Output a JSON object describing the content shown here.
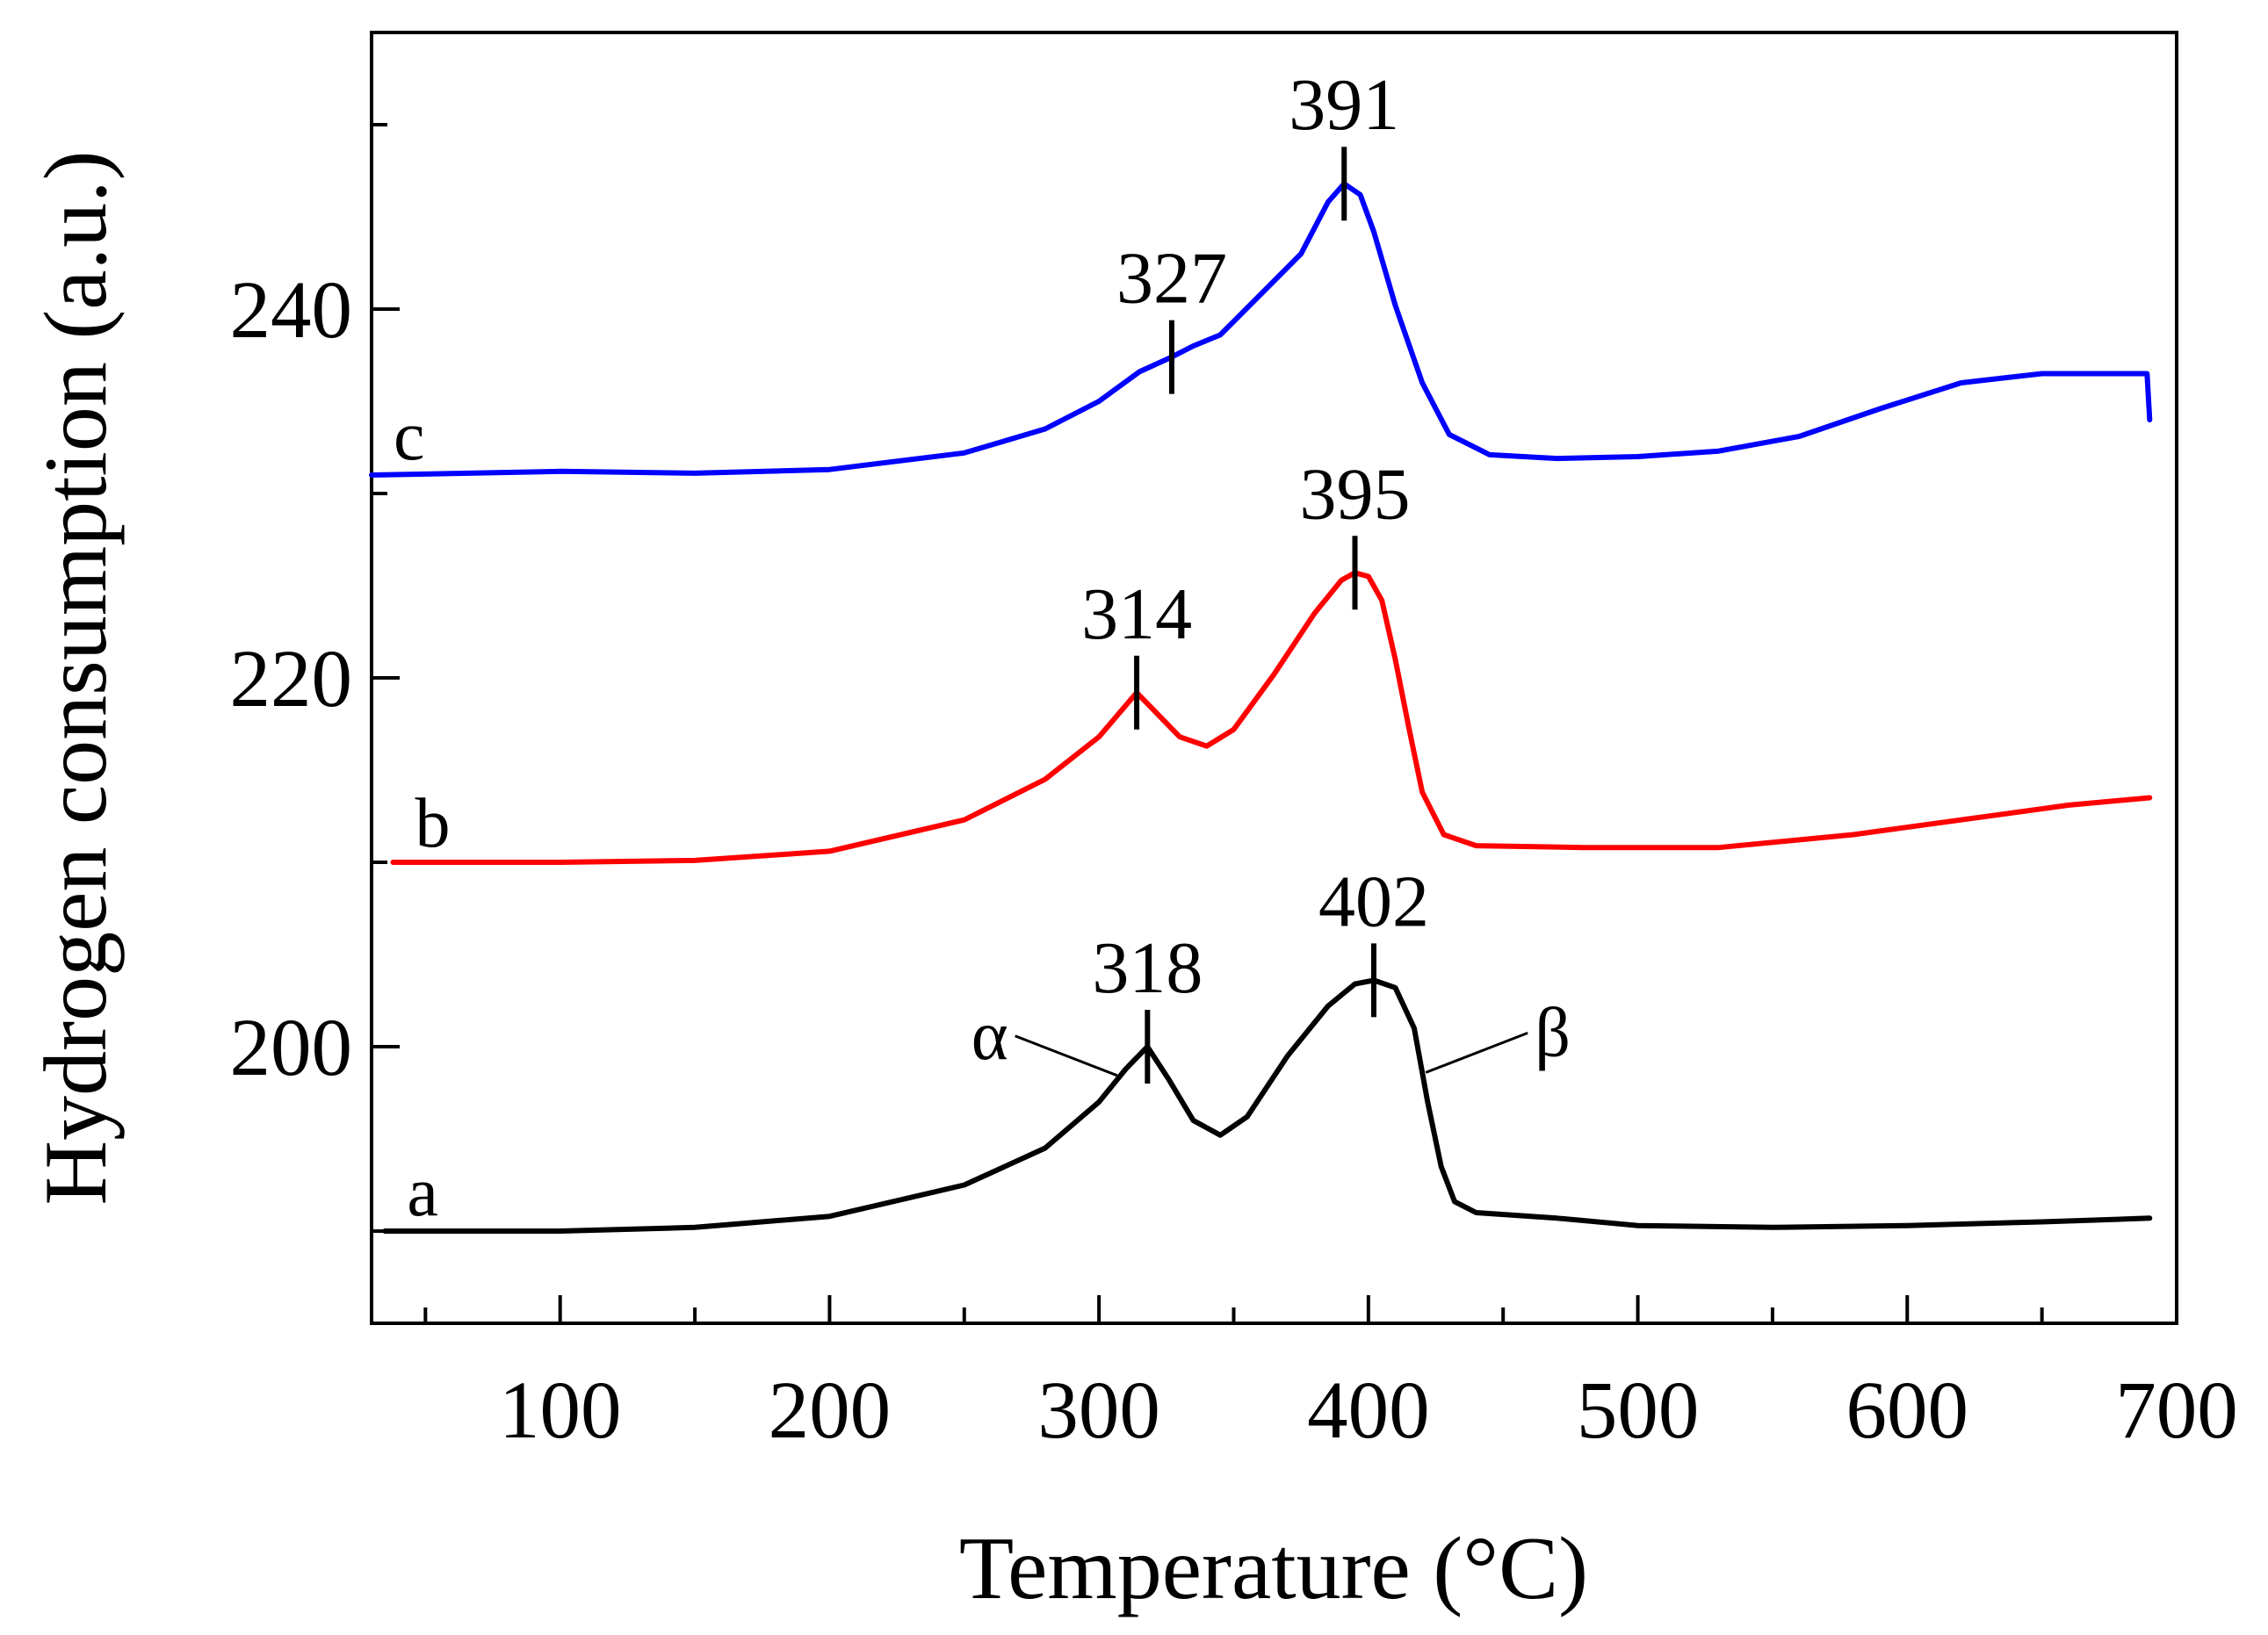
{
  "chart_data": {
    "type": "line",
    "xlabel": "Temperature (°C)",
    "ylabel": "Hydrogen consumption (a.u.)",
    "xlim": [
      30,
      700
    ],
    "ylim": [
      185,
      255
    ],
    "x_ticks": [
      100,
      200,
      300,
      400,
      500,
      600,
      700
    ],
    "y_ticks": [
      200,
      220,
      240
    ],
    "grid": false,
    "series": [
      {
        "name": "a",
        "color": "#000000",
        "points": [
          [
            35,
            190
          ],
          [
            100,
            190
          ],
          [
            150,
            190.2
          ],
          [
            200,
            190.8
          ],
          [
            250,
            192.5
          ],
          [
            280,
            194.5
          ],
          [
            300,
            197
          ],
          [
            310,
            198.8
          ],
          [
            318,
            200
          ],
          [
            326,
            198.2
          ],
          [
            335,
            196
          ],
          [
            345,
            195.2
          ],
          [
            355,
            196.2
          ],
          [
            370,
            199.5
          ],
          [
            385,
            202.2
          ],
          [
            395,
            203.4
          ],
          [
            402,
            203.6
          ],
          [
            410,
            203.2
          ],
          [
            417,
            201
          ],
          [
            422,
            197
          ],
          [
            427,
            193.5
          ],
          [
            432,
            191.6
          ],
          [
            440,
            191
          ],
          [
            470,
            190.7
          ],
          [
            500,
            190.3
          ],
          [
            550,
            190.2
          ],
          [
            600,
            190.3
          ],
          [
            650,
            190.5
          ],
          [
            690,
            190.7
          ]
        ]
      },
      {
        "name": "b",
        "color": "#ff0000",
        "points": [
          [
            38,
            210
          ],
          [
            100,
            210
          ],
          [
            150,
            210.1
          ],
          [
            200,
            210.6
          ],
          [
            250,
            212.3
          ],
          [
            280,
            214.5
          ],
          [
            300,
            216.8
          ],
          [
            314,
            219.2
          ],
          [
            322,
            218
          ],
          [
            330,
            216.8
          ],
          [
            340,
            216.3
          ],
          [
            350,
            217.2
          ],
          [
            365,
            220.2
          ],
          [
            380,
            223.5
          ],
          [
            390,
            225.3
          ],
          [
            395,
            225.7
          ],
          [
            400,
            225.5
          ],
          [
            405,
            224.2
          ],
          [
            410,
            221
          ],
          [
            415,
            217.3
          ],
          [
            420,
            213.8
          ],
          [
            428,
            211.5
          ],
          [
            440,
            210.9
          ],
          [
            480,
            210.8
          ],
          [
            530,
            210.8
          ],
          [
            580,
            211.5
          ],
          [
            620,
            212.3
          ],
          [
            660,
            213.1
          ],
          [
            690,
            213.5
          ]
        ]
      },
      {
        "name": "c",
        "color": "#0000ff",
        "points": [
          [
            30,
            231
          ],
          [
            100,
            231.2
          ],
          [
            150,
            231.1
          ],
          [
            200,
            231.3
          ],
          [
            250,
            232.2
          ],
          [
            280,
            233.5
          ],
          [
            300,
            235
          ],
          [
            315,
            236.6
          ],
          [
            327,
            237.4
          ],
          [
            335,
            238
          ],
          [
            345,
            238.6
          ],
          [
            360,
            240.8
          ],
          [
            375,
            243
          ],
          [
            385,
            245.8
          ],
          [
            391,
            246.8
          ],
          [
            397,
            246.2
          ],
          [
            402,
            244.2
          ],
          [
            410,
            240.2
          ],
          [
            420,
            236
          ],
          [
            430,
            233.2
          ],
          [
            445,
            232.1
          ],
          [
            470,
            231.9
          ],
          [
            500,
            232
          ],
          [
            530,
            232.3
          ],
          [
            560,
            233.1
          ],
          [
            590,
            234.6
          ],
          [
            620,
            236
          ],
          [
            650,
            236.5
          ],
          [
            689,
            236.5
          ],
          [
            690,
            234
          ]
        ]
      }
    ],
    "peak_labels": [
      {
        "series": "a",
        "x": 318,
        "text": "318"
      },
      {
        "series": "a",
        "x": 402,
        "text": "402"
      },
      {
        "series": "b",
        "x": 314,
        "text": "314"
      },
      {
        "series": "b",
        "x": 395,
        "text": "395"
      },
      {
        "series": "c",
        "x": 327,
        "text": "327"
      },
      {
        "series": "c",
        "x": 391,
        "text": "391"
      }
    ],
    "annotations": [
      {
        "text": "α",
        "target_series": "a",
        "target_x": 308
      },
      {
        "text": "β",
        "target_series": "a",
        "target_x": 420
      }
    ]
  }
}
